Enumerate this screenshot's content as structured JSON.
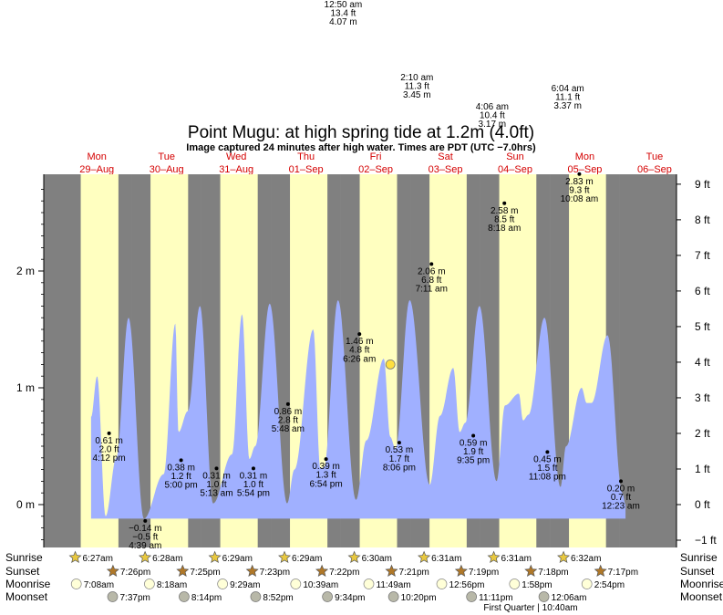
{
  "title": "Point Mugu: at high  spring tide at 1.2m (4.0ft)",
  "subtitle": "Image captured 24 minutes after high water. Times are PDT (UTC −7.0hrs)",
  "colors": {
    "night": "#808080",
    "day": "#ffffc0",
    "tide_fill": "#a0b0ff",
    "day_label": "#d40000",
    "marker": "#ffdf40"
  },
  "days": [
    {
      "dow": "Mon",
      "date": "29–Aug"
    },
    {
      "dow": "Tue",
      "date": "30–Aug"
    },
    {
      "dow": "Wed",
      "date": "31–Aug"
    },
    {
      "dow": "Thu",
      "date": "01–Sep"
    },
    {
      "dow": "Fri",
      "date": "02–Sep"
    },
    {
      "dow": "Sat",
      "date": "03–Sep"
    },
    {
      "dow": "Sun",
      "date": "04–Sep"
    },
    {
      "dow": "Mon",
      "date": "05–Sep"
    },
    {
      "dow": "Tue",
      "date": "06–Sep"
    }
  ],
  "chart_data": {
    "type": "area",
    "series": [
      {
        "values": [
          [
            10.0,
            0.75
          ],
          [
            12.1,
            1.1
          ],
          [
            15.0,
            -0.1
          ],
          [
            18.7,
            0.4
          ],
          [
            22.9,
            1.6
          ],
          [
            28.2,
            -0.12
          ],
          [
            35.0,
            0.26
          ],
          [
            39.0,
            1.55
          ],
          [
            40.1,
            0.62
          ],
          [
            43.3,
            0.8
          ],
          [
            47.5,
            1.7
          ],
          [
            52.0,
            0.01
          ],
          [
            58.5,
            0.43
          ],
          [
            62.0,
            1.63
          ],
          [
            64.5,
            0.39
          ],
          [
            66.5,
            0.5
          ],
          [
            71.5,
            1.72
          ],
          [
            77.5,
            0.01
          ],
          [
            80.0,
            0.3
          ],
          [
            86.5,
            1.5
          ],
          [
            88.9,
            0.31
          ],
          [
            90.2,
            0.32
          ],
          [
            95.0,
            1.75
          ],
          [
            101.2,
            0.04
          ],
          [
            104.8,
            0.55
          ],
          [
            110.8,
            1.25
          ],
          [
            113.0,
            0.58
          ],
          [
            114.8,
            0.48
          ],
          [
            119.7,
            1.75
          ],
          [
            126.6,
            0.17
          ],
          [
            130.1,
            0.76
          ],
          [
            134.7,
            1.17
          ],
          [
            136.9,
            0.62
          ],
          [
            138.8,
            0.7
          ],
          [
            143.7,
            1.7
          ],
          [
            149.6,
            0.2
          ],
          [
            152.5,
            0.85
          ],
          [
            157.3,
            0.95
          ],
          [
            158.7,
            0.72
          ],
          [
            160.6,
            0.77
          ],
          [
            166.1,
            1.6
          ],
          [
            171.6,
            0.15
          ],
          [
            173.5,
            0.5
          ],
          [
            178.9,
            1.0
          ],
          [
            180.6,
            0.87
          ],
          [
            182.3,
            0.87
          ],
          [
            187.8,
            1.45
          ],
          [
            192.9,
            0.1
          ],
          [
            194.0,
            0.0
          ]
        ]
      }
    ],
    "x_unit": "hours since 00:00 29-Aug (PDT)",
    "y_left_label": "m",
    "y_left_ticks": [
      {
        "value": 0,
        "label": "0 m"
      },
      {
        "value": 1,
        "label": "1 m"
      },
      {
        "value": 2,
        "label": "2 m"
      }
    ],
    "y_right_ticks": [
      {
        "value_ft": -1,
        "label": "−1 ft"
      },
      {
        "value_ft": 0,
        "label": "0 ft"
      },
      {
        "value_ft": 1,
        "label": "1 ft"
      },
      {
        "value_ft": 2,
        "label": "2 ft"
      },
      {
        "value_ft": 3,
        "label": "3 ft"
      },
      {
        "value_ft": 4,
        "label": "4 ft"
      },
      {
        "value_ft": 5,
        "label": "5 ft"
      },
      {
        "value_ft": 6,
        "label": "6 ft"
      },
      {
        "value_ft": 7,
        "label": "7 ft"
      },
      {
        "value_ft": 8,
        "label": "8 ft"
      },
      {
        "value_ft": 9,
        "label": "9 ft"
      }
    ],
    "ylim_m": [
      -0.37,
      2.82
    ],
    "now_marker": {
      "t": 113.05,
      "m": 1.2
    },
    "annotations": [
      {
        "t": 16.2,
        "m": 0.61,
        "lines": [
          "0.61 m",
          "2.0 ft",
          "4:12 pm"
        ],
        "pos": "below"
      },
      {
        "t": 28.65,
        "m": -0.14,
        "lines": [
          "−0.14 m",
          "−0.5 ft",
          "4:39 am"
        ],
        "pos": "below"
      },
      {
        "t": 41.0,
        "m": 0.38,
        "lines": [
          "0.38 m",
          "1.2 ft",
          "5:00 pm"
        ],
        "pos": "below"
      },
      {
        "t": 53.2,
        "m": 0.31,
        "lines": [
          "0.31 m",
          "1.0 ft",
          "5:13 am"
        ],
        "pos": "below"
      },
      {
        "t": 65.9,
        "m": 0.31,
        "lines": [
          "0.31 m",
          "1.0 ft",
          "5:54 pm"
        ],
        "pos": "below"
      },
      {
        "t": 77.8,
        "m": 0.86,
        "lines": [
          "0.86 m",
          "2.8 ft",
          "5:48 am"
        ],
        "pos": "below"
      },
      {
        "t": 90.9,
        "m": 0.39,
        "lines": [
          "0.39 m",
          "1.3 ft",
          "6:54 pm"
        ],
        "pos": "below"
      },
      {
        "t": 102.4,
        "m": 1.46,
        "lines": [
          "1.46 m",
          "4.8 ft",
          "6:26 am"
        ],
        "pos": "below"
      },
      {
        "t": 116.1,
        "m": 0.53,
        "lines": [
          "0.53 m",
          "1.7 ft",
          "8:06 pm"
        ],
        "pos": "below"
      },
      {
        "t": 127.2,
        "m": 2.06,
        "lines": [
          "2.06 m",
          "6.8 ft",
          "7:11 am"
        ],
        "pos": "below"
      },
      {
        "t": 141.6,
        "m": 0.59,
        "lines": [
          "0.59 m",
          "1.9 ft",
          "9:35 pm"
        ],
        "pos": "below"
      },
      {
        "t": 152.3,
        "m": 2.58,
        "lines": [
          "2.58 m",
          "8.5 ft",
          "8:18 am"
        ],
        "pos": "below"
      },
      {
        "t": 167.1,
        "m": 0.45,
        "lines": [
          "0.45 m",
          "1.5 ft",
          "11:08 pm"
        ],
        "pos": "below"
      },
      {
        "t": 178.1,
        "m": 2.83,
        "lines": [
          "2.83 m",
          "9.3 ft",
          "10:08 am"
        ],
        "pos": "below"
      },
      {
        "t": 192.4,
        "m": 0.2,
        "lines": [
          "0.20 m",
          "0.7 ft",
          "12:23 am"
        ],
        "pos": "below"
      }
    ],
    "offscale_highs": [
      {
        "t": 96.8,
        "lines": [
          "12:50 am",
          "13.4 ft",
          "4.07 m"
        ]
      },
      {
        "t": 122.2,
        "lines": [
          "2:10 am",
          "11.3 ft",
          "3.45 m"
        ]
      },
      {
        "t": 148.1,
        "lines": [
          "4:06 am",
          "10.4 ft",
          "3.17 m"
        ]
      },
      {
        "t": 174.1,
        "lines": [
          "6:04 am",
          "11.1 ft",
          "3.37 m"
        ]
      }
    ]
  },
  "astro": {
    "row_labels": {
      "sunrise": "Sunrise",
      "sunset": "Sunset",
      "moonrise": "Moonrise",
      "moonset": "Moonset"
    },
    "sunrise": [
      {
        "t": 6.45,
        "text": "6:27am"
      },
      {
        "t": 30.47,
        "text": "6:28am"
      },
      {
        "t": 54.48,
        "text": "6:29am"
      },
      {
        "t": 78.48,
        "text": "6:29am"
      },
      {
        "t": 102.5,
        "text": "6:30am"
      },
      {
        "t": 126.52,
        "text": "6:31am"
      },
      {
        "t": 150.52,
        "text": "6:31am"
      },
      {
        "t": 174.53,
        "text": "6:32am"
      }
    ],
    "sunset": [
      {
        "t": 19.43,
        "text": "7:26pm"
      },
      {
        "t": 43.42,
        "text": "7:25pm"
      },
      {
        "t": 67.38,
        "text": "7:23pm"
      },
      {
        "t": 91.37,
        "text": "7:22pm"
      },
      {
        "t": 115.35,
        "text": "7:21pm"
      },
      {
        "t": 139.32,
        "text": "7:19pm"
      },
      {
        "t": 163.3,
        "text": "7:18pm"
      },
      {
        "t": 187.28,
        "text": "7:17pm"
      }
    ],
    "moonrise": [
      {
        "t": 7.13,
        "text": "7:08am"
      },
      {
        "t": 32.3,
        "text": "8:18am"
      },
      {
        "t": 57.48,
        "text": "9:29am"
      },
      {
        "t": 82.65,
        "text": "10:39am"
      },
      {
        "t": 107.82,
        "text": "11:49am"
      },
      {
        "t": 132.93,
        "text": "12:56pm"
      },
      {
        "t": 157.97,
        "text": "1:58pm"
      },
      {
        "t": 182.9,
        "text": "2:54pm"
      }
    ],
    "moonset": [
      {
        "t": 19.62,
        "text": "7:37pm"
      },
      {
        "t": 44.23,
        "text": "8:14pm"
      },
      {
        "t": 68.87,
        "text": "8:52pm"
      },
      {
        "t": 93.57,
        "text": "9:34pm"
      },
      {
        "t": 116.33,
        "text": "10:20pm"
      },
      {
        "t": 143.18,
        "text": "11:11pm"
      },
      {
        "t": 168.1,
        "text": "12:06am"
      }
    ],
    "moon_phase_note": "First Quarter | 10:40am"
  }
}
